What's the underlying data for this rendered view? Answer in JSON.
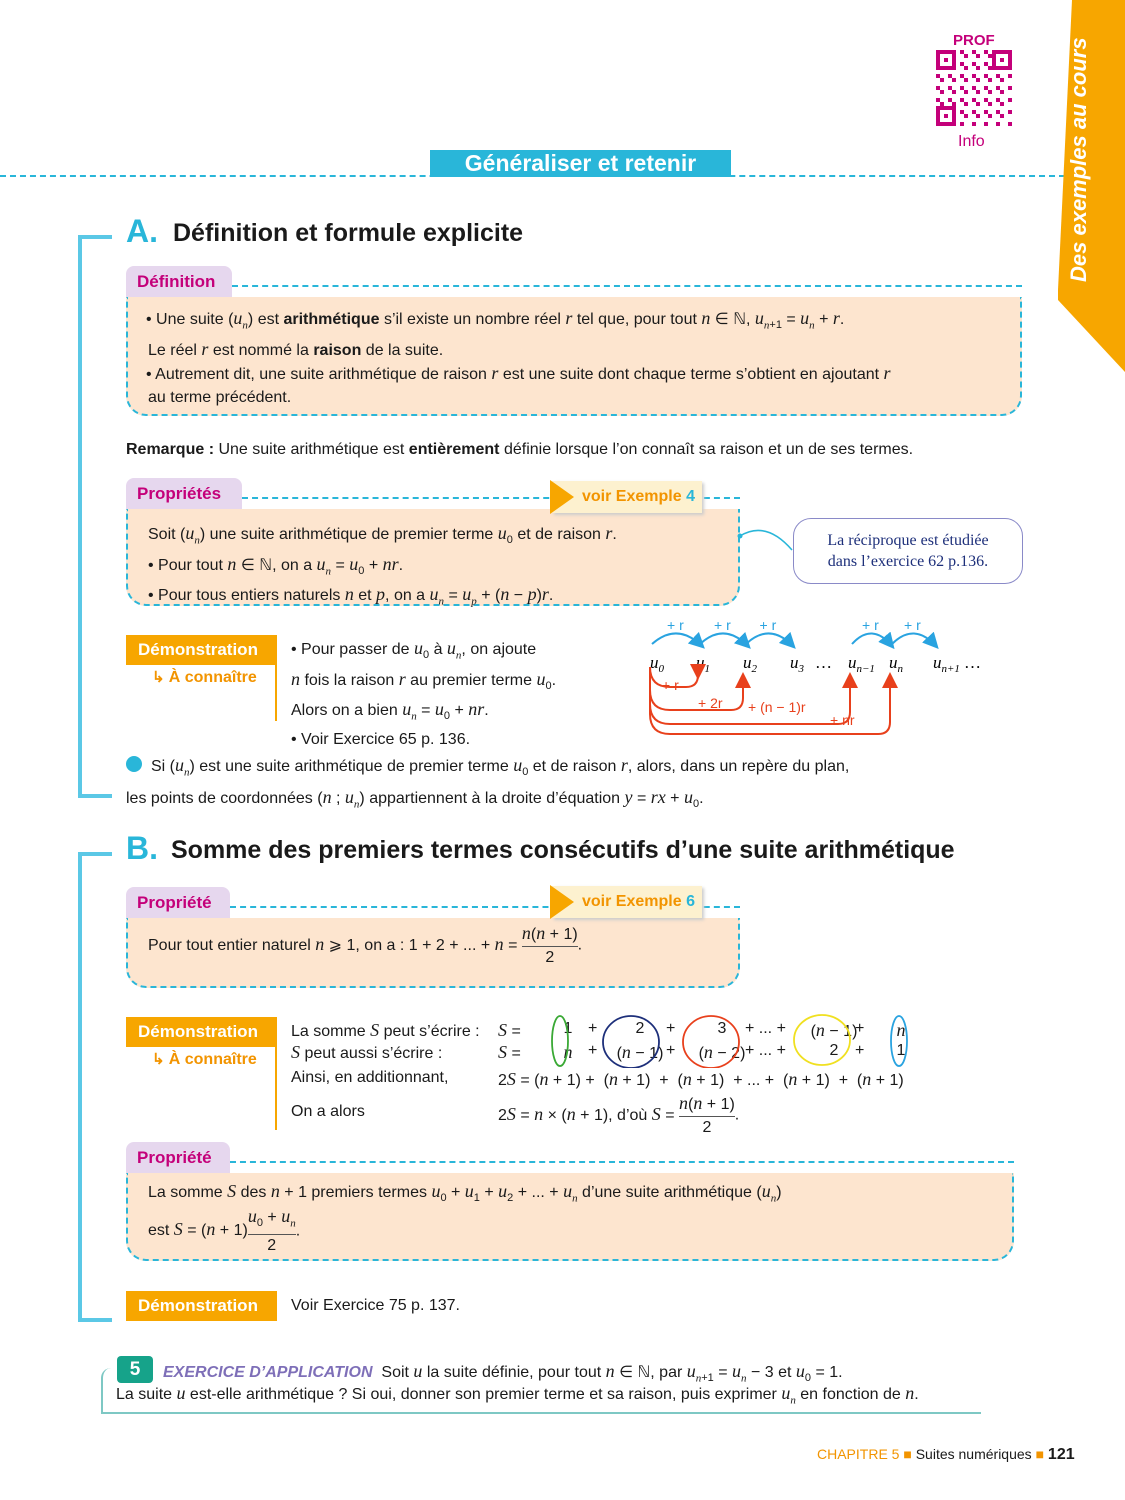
{
  "header": {
    "banner": "Généraliser et retenir",
    "qr_top": "PROF",
    "qr_bottom": "Info",
    "side_tab": "Des exemples au cours"
  },
  "colors": {
    "accent": "#29b6d9",
    "orange": "#f7a600",
    "magenta": "#c4007a",
    "box": "#fde5cf"
  },
  "sectionA": {
    "letter": "A.",
    "title": "Définition et formule explicite",
    "definition": {
      "label": "Définition",
      "lines": [
        "• Une suite (<i>u<sub>n</sub></i>) est <b>arithmétique</b> s’il existe un nombre réel <i>r</i> tel que, pour tout <i>n</i> ∈ ℕ, <i>u<sub>n</sub></i><sub>+1</sub> = <i>u<sub>n</sub></i> + <i>r</i>.",
        "Le réel <i>r</i> est nommé la <b>raison</b> de la suite.",
        "• Autrement dit, une suite arithmétique de raison <i>r</i> est une suite dont chaque terme s’obtient en ajoutant <i>r</i>",
        "au terme précédent."
      ]
    },
    "remark": "<b>Remarque :</b> Une suite arithmétique est <b>entièrement</b> définie lorsque l’on connaît sa raison et un de ses termes.",
    "properties": {
      "label": "Propriétés",
      "see": "voir Exemple",
      "see_num": "4",
      "lines": [
        "Soit (<i>u<sub>n</sub></i>) une suite arithmétique de premier terme <i>u</i><sub>0</sub> et de raison <i>r</i>.",
        "• Pour tout <i>n</i> ∈ ℕ, on a <i>u<sub>n</sub></i> = <i>u</i><sub>0</sub> + <i>nr</i>.",
        "• Pour tous entiers naturels <i>n</i> et <i>p</i>, on a <i>u<sub>n</sub></i> = <i>u<sub>p</sub></i> + (<i>n</i> − <i>p</i>)<i>r</i>."
      ]
    },
    "callout": [
      "La réciproque est étudiée",
      "dans l’exercice 62 p.136."
    ],
    "demo": {
      "label": "Démonstration",
      "know": "À connaître",
      "lines": [
        "• Pour passer de <i>u</i><sub>0</sub> à <i>u<sub>n</sub></i>, on ajoute",
        "<i>n</i> fois la raison <i>r</i> au premier terme <i>u</i><sub>0</sub>.",
        "Alors on a bien <i>u<sub>n</sub></i> = <i>u</i><sub>0</sub> + <i>nr</i>.",
        "• Voir Exercice 65 p. 136."
      ]
    },
    "diagram": {
      "terms": [
        "u0",
        "u1",
        "u2",
        "u3",
        "…",
        "un−1",
        "un",
        "un+1",
        "…"
      ],
      "blue": [
        "+ r",
        "+ r",
        "+ r",
        "+ r",
        "+ r"
      ],
      "red": [
        "+ r",
        "+ 2r",
        "+ (n − 1)r",
        "+ nr"
      ]
    },
    "note": [
      "Si (<i>u<sub>n</sub></i>) est une suite arithmétique de premier terme <i>u</i><sub>0</sub> et de raison <i>r</i>, alors, dans un repère du plan,",
      "les points de coordonnées (<i>n</i> ; <i>u<sub>n</sub></i>) appartiennent à la droite d’équation <i>y</i> = <i>rx</i> + <i>u</i><sub>0</sub>."
    ]
  },
  "sectionB": {
    "letter": "B.",
    "title": "Somme des premiers termes consécutifs d’une suite arithmétique",
    "property1": {
      "label": "Propriété",
      "see": "voir Exemple",
      "see_num": "6",
      "text": "Pour tout entier naturel <i>n</i> ⩾ 1, on a : 1 + 2 + ... + <i>n</i> =",
      "num": "<i>n</i>(<i>n</i> + 1)",
      "den": "2"
    },
    "demo": {
      "label": "Démonstration",
      "know": "À connaître",
      "labels": [
        "La somme <i>S</i> peut s’écrire :",
        "<i>S</i> peut aussi s’écrire :",
        "Ainsi, en additionnant,",
        "On a alors"
      ],
      "row1": [
        "<i>S</i> =",
        "1",
        "+",
        "2",
        "+",
        "3",
        "+ ... +",
        "(<i>n</i> − 1)",
        "+",
        "<i>n</i>"
      ],
      "row2": [
        "<i>S</i> =",
        "<i>n</i>",
        "+",
        "(<i>n</i> − 1)",
        "+",
        "(<i>n</i> − 2)",
        "+ ... +",
        "2",
        "+",
        "1"
      ],
      "row3": "2<i>S</i> = (<i>n</i> + 1) + &nbsp;(<i>n</i> + 1) &nbsp;+ &nbsp;(<i>n</i> + 1) &nbsp;+ ... + &nbsp;(<i>n</i> + 1) &nbsp;+ &nbsp;(<i>n</i> + 1)",
      "row4": "2<i>S</i> = <i>n</i> × (<i>n</i> + 1), d’où <i>S</i> =",
      "row4_num": "<i>n</i>(<i>n</i> + 1)",
      "row4_den": "2"
    },
    "property2": {
      "label": "Propriété",
      "line1": "La somme <i>S</i> des <i>n</i> + 1 premiers termes <i>u</i><sub>0</sub> + <i>u</i><sub>1</sub> + <i>u</i><sub>2</sub> + ... + <i>u<sub>n</sub></i> d’une suite arithmétique (<i>u<sub>n</sub></i>)",
      "line2": "est <i>S</i> = (<i>n</i> + 1)",
      "num": "<i>u</i><sub>0</sub> + <i>u<sub>n</sub></i>",
      "den": "2"
    },
    "demo2": {
      "label": "Démonstration",
      "text": "Voir Exercice 75 p. 137."
    }
  },
  "exercise": {
    "number": "5",
    "title": "EXERCICE D’APPLICATION",
    "line1": "Soit <i>u</i> la suite définie, pour tout <i>n</i> ∈ ℕ, par <i>u<sub>n</sub></i><sub>+1</sub> = <i>u<sub>n</sub></i> − 3 et <i>u</i><sub>0</sub> = 1.",
    "line2": "La suite <i>u</i> est-elle arithmétique ? Si oui, donner son premier terme et sa raison, puis exprimer <i>u<sub>n</sub></i> en fonction de <i>n</i>."
  },
  "footer": {
    "chapter": "CHAPITRE 5",
    "title": "Suites numériques",
    "page": "121"
  }
}
